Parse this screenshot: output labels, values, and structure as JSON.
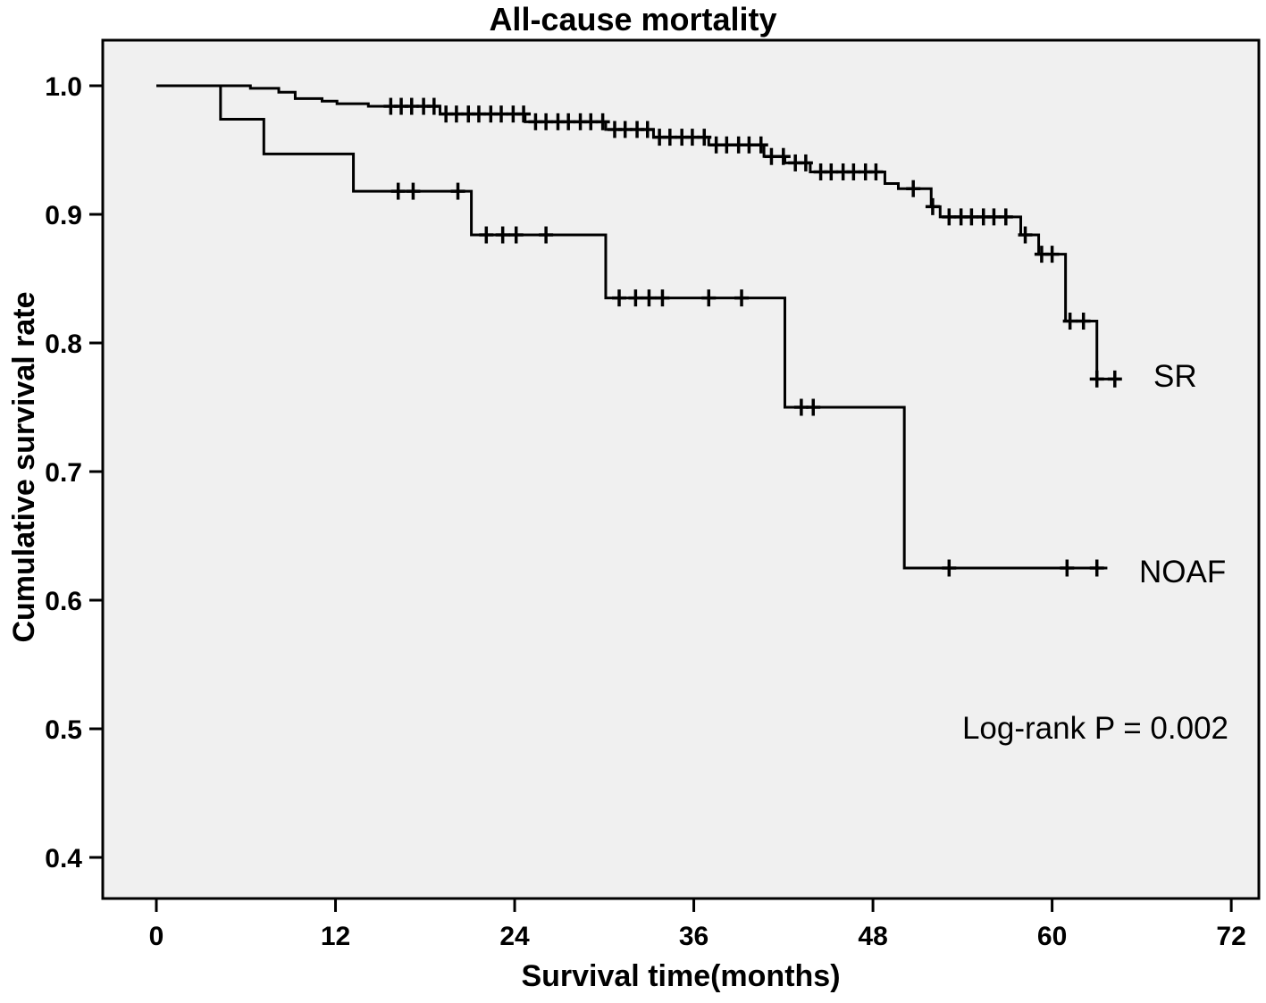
{
  "chart_data": {
    "type": "line",
    "subtype": "kaplan-meier-step-curves",
    "title": "All-cause mortality",
    "annotation": "Log-rank P = 0.002",
    "grid": false,
    "legend_position": "labels-at-curve-ends",
    "colors": {
      "line": "#000000",
      "plot_background": "#f0f0f0",
      "figure_background": "#ffffff",
      "text": "#000000"
    },
    "x_axis": {
      "label": "Survival time(months)",
      "ticks": [
        0,
        12,
        24,
        36,
        48,
        60,
        72
      ],
      "range": [
        -3.6,
        73.8
      ]
    },
    "y_axis": {
      "label": "Cumulative survival rate",
      "ticks": [
        "1.0",
        "0.9",
        "0.8",
        "0.7",
        "0.6",
        "0.5",
        "0.4"
      ],
      "range": [
        0.368,
        1.035
      ]
    },
    "series": [
      {
        "name": "SR",
        "label": "SR",
        "steps": [
          [
            0,
            1.0
          ],
          [
            6.3,
            0.998
          ],
          [
            8.2,
            0.995
          ],
          [
            9.3,
            0.99
          ],
          [
            11.1,
            0.988
          ],
          [
            12.1,
            0.986
          ],
          [
            14.2,
            0.984
          ],
          [
            19.0,
            0.978
          ],
          [
            24.7,
            0.972
          ],
          [
            30.1,
            0.966
          ],
          [
            33.3,
            0.96
          ],
          [
            37.0,
            0.954
          ],
          [
            40.7,
            0.945
          ],
          [
            42.1,
            0.94
          ],
          [
            43.8,
            0.933
          ],
          [
            48.8,
            0.924
          ],
          [
            49.7,
            0.92
          ],
          [
            51.9,
            0.906
          ],
          [
            52.5,
            0.898
          ],
          [
            57.9,
            0.884
          ],
          [
            59.1,
            0.869
          ],
          [
            60.9,
            0.817
          ],
          [
            63.0,
            0.772
          ]
        ],
        "end_time": 64.5,
        "censor_times": [
          15.7,
          16.4,
          17.1,
          17.9,
          18.6,
          19.4,
          20.1,
          20.9,
          21.6,
          22.4,
          23.1,
          23.9,
          24.6,
          25.4,
          26.1,
          26.9,
          27.6,
          28.4,
          29.1,
          29.9,
          30.7,
          31.4,
          32.2,
          32.9,
          33.7,
          34.4,
          35.2,
          35.9,
          36.7,
          37.5,
          38.2,
          39.0,
          39.7,
          40.5,
          41.2,
          42.0,
          42.8,
          43.5,
          44.5,
          45.2,
          46.0,
          46.7,
          47.5,
          48.2,
          50.7,
          52.0,
          53.1,
          53.9,
          54.6,
          55.4,
          56.1,
          56.9,
          58.2,
          59.3,
          60.0,
          61.2,
          62.1,
          63.0,
          64.2
        ]
      },
      {
        "name": "NOAF",
        "label": "NOAF",
        "steps": [
          [
            0,
            1.0
          ],
          [
            4.3,
            0.974
          ],
          [
            7.2,
            0.947
          ],
          [
            13.2,
            0.918
          ],
          [
            21.1,
            0.884
          ],
          [
            30.1,
            0.835
          ],
          [
            42.1,
            0.75
          ],
          [
            50.1,
            0.625
          ]
        ],
        "end_time": 63.7,
        "censor_times": [
          16.2,
          17.2,
          20.2,
          22.1,
          23.2,
          24.1,
          26.1,
          31.0,
          32.1,
          33.0,
          33.9,
          37.0,
          39.2,
          43.2,
          44.0,
          53.1,
          61.0,
          63.0
        ]
      }
    ]
  }
}
